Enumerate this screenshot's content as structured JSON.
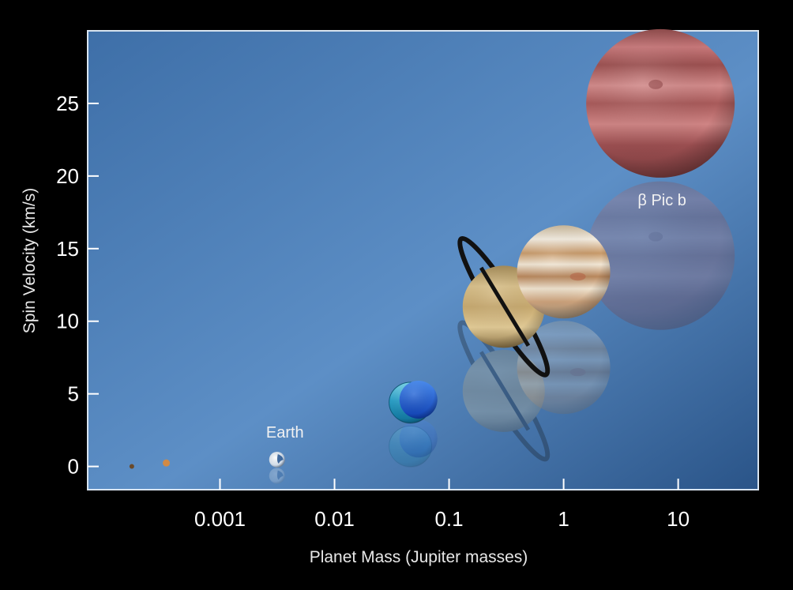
{
  "chart_data": {
    "type": "scatter",
    "title": "",
    "xlabel": "Planet Mass (Jupiter masses)",
    "ylabel": "Spin Velocity (km/s)",
    "x_scale": "log",
    "xlim": [
      7e-05,
      50
    ],
    "ylim": [
      -1.6,
      30
    ],
    "x_ticks": [
      {
        "value": 0.001,
        "label": "0.001"
      },
      {
        "value": 0.01,
        "label": "0.01"
      },
      {
        "value": 0.1,
        "label": "0.1"
      },
      {
        "value": 1,
        "label": "1"
      },
      {
        "value": 10,
        "label": "10"
      }
    ],
    "y_ticks": [
      {
        "value": 0,
        "label": "0"
      },
      {
        "value": 5,
        "label": "5"
      },
      {
        "value": 10,
        "label": "10"
      },
      {
        "value": 15,
        "label": "15"
      },
      {
        "value": 20,
        "label": "20"
      },
      {
        "value": 25,
        "label": "25"
      }
    ],
    "grid": false,
    "points": [
      {
        "id": "mercury",
        "x": 0.00017,
        "y": 0.003,
        "label": "",
        "color": "#6a4a2a",
        "icon": "small-planet"
      },
      {
        "id": "mars",
        "x": 0.00034,
        "y": 0.24,
        "label": "",
        "color": "#d28a45",
        "icon": "small-planet"
      },
      {
        "id": "earth",
        "x": 0.00315,
        "y": 0.47,
        "label": "Earth",
        "color": "#dfe8f2",
        "icon": "earth"
      },
      {
        "id": "uranus",
        "x": 0.046,
        "y": 4.4,
        "label": "",
        "color": "#2fa6cc",
        "icon": "ice-giant"
      },
      {
        "id": "neptune",
        "x": 0.054,
        "y": 4.6,
        "label": "",
        "color": "#1f5fd6",
        "icon": "ice-giant"
      },
      {
        "id": "saturn",
        "x": 0.3,
        "y": 11.0,
        "label": "",
        "color": "#c9ac73",
        "icon": "ringed-planet"
      },
      {
        "id": "jupiter",
        "x": 1.0,
        "y": 13.4,
        "label": "",
        "color": "#e6d8bf",
        "icon": "gas-giant"
      },
      {
        "id": "beta-pic-b",
        "x": 7.0,
        "y": 25.0,
        "label": "β Pic b",
        "color": "#b45a5a",
        "icon": "gas-giant"
      }
    ]
  }
}
